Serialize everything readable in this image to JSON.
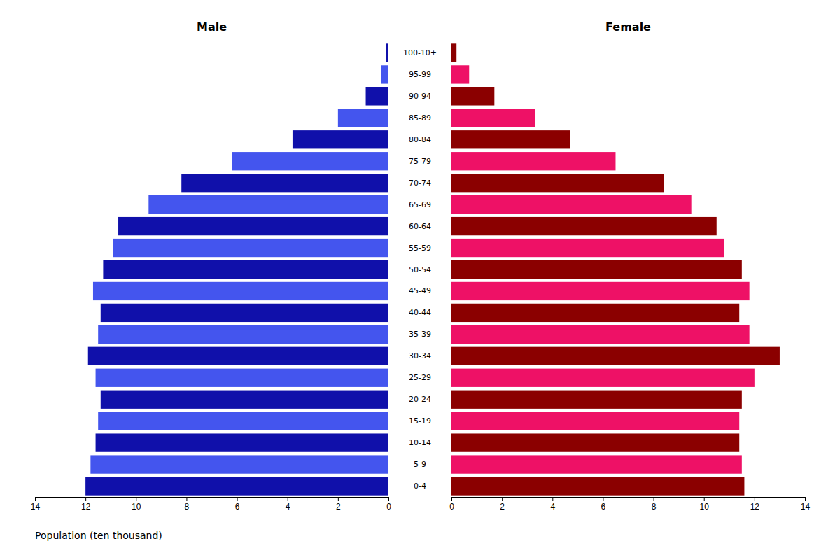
{
  "chart_data": {
    "type": "bar",
    "orientation": "horizontal",
    "categories": [
      "0-4",
      "5-9",
      "10-14",
      "15-19",
      "20-24",
      "25-29",
      "30-34",
      "35-39",
      "40-44",
      "45-49",
      "50-54",
      "55-59",
      "60-64",
      "65-69",
      "70-74",
      "75-79",
      "80-84",
      "85-89",
      "90-94",
      "95-99",
      "100-10+"
    ],
    "series": [
      {
        "name": "Male",
        "colors": [
          "#1010AA",
          "#4455EE",
          "#1010AA",
          "#4455EE",
          "#1010AA",
          "#4455EE",
          "#1010AA",
          "#4455EE",
          "#1010AA",
          "#4455EE",
          "#1010AA",
          "#4455EE",
          "#1010AA",
          "#4455EE",
          "#1010AA",
          "#4455EE",
          "#1010AA",
          "#4455EE",
          "#1010AA",
          "#4455EE",
          "#1010AA"
        ],
        "values": [
          12.0,
          11.8,
          11.6,
          11.5,
          11.4,
          11.6,
          11.9,
          11.5,
          11.4,
          11.7,
          11.3,
          10.9,
          10.7,
          9.5,
          8.2,
          6.2,
          3.8,
          2.0,
          0.9,
          0.3,
          0.1
        ]
      },
      {
        "name": "Female",
        "colors": [
          "#8B0000",
          "#EE1166",
          "#8B0000",
          "#EE1166",
          "#8B0000",
          "#EE1166",
          "#8B0000",
          "#EE1166",
          "#8B0000",
          "#EE1166",
          "#8B0000",
          "#EE1166",
          "#8B0000",
          "#EE1166",
          "#8B0000",
          "#EE1166",
          "#8B0000",
          "#EE1166",
          "#8B0000",
          "#EE1166",
          "#8B0000"
        ],
        "values": [
          11.6,
          11.5,
          11.4,
          11.4,
          11.5,
          12.0,
          13.0,
          11.8,
          11.4,
          11.8,
          11.5,
          10.8,
          10.5,
          9.5,
          8.4,
          6.5,
          4.7,
          3.3,
          1.7,
          0.7,
          0.2
        ]
      }
    ],
    "xlabel": "Population (ten thousand)",
    "xlim": [
      0,
      14
    ],
    "xticks": [
      0,
      2,
      4,
      6,
      8,
      10,
      12,
      14
    ],
    "grid": false
  }
}
